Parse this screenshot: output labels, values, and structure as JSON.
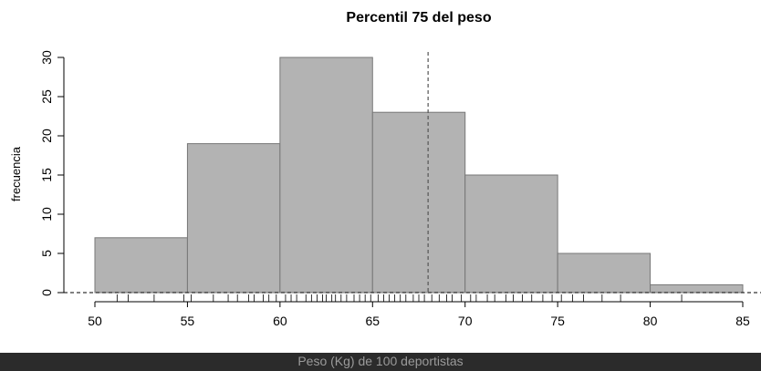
{
  "chart_data": {
    "type": "bar",
    "title": "Percentil 75 del peso",
    "xlabel": "Peso (Kg) de 100 deportistas",
    "ylabel": "frecuencia",
    "bins": [
      {
        "from": 50,
        "to": 55,
        "count": 7
      },
      {
        "from": 55,
        "to": 60,
        "count": 19
      },
      {
        "from": 60,
        "to": 65,
        "count": 30
      },
      {
        "from": 65,
        "to": 70,
        "count": 23
      },
      {
        "from": 70,
        "to": 75,
        "count": 15
      },
      {
        "from": 75,
        "to": 80,
        "count": 5
      },
      {
        "from": 80,
        "to": 85,
        "count": 1
      }
    ],
    "xlim": [
      50,
      85
    ],
    "ylim": [
      0,
      30
    ],
    "xticks": [
      "50",
      "55",
      "60",
      "65",
      "70",
      "75",
      "80",
      "85"
    ],
    "yticks": [
      "0",
      "5",
      "10",
      "15",
      "20",
      "25",
      "30"
    ],
    "percentile_75": 68,
    "rug": [
      51.2,
      51.8,
      53.2,
      54.8,
      55.2,
      56.4,
      57.2,
      57.7,
      58.3,
      58.6,
      59.1,
      59.4,
      59.8,
      60.3,
      60.6,
      60.9,
      61.4,
      61.7,
      62.0,
      62.3,
      62.5,
      62.8,
      63.0,
      63.3,
      63.6,
      64.0,
      64.3,
      64.6,
      64.9,
      65.3,
      65.6,
      65.9,
      66.2,
      66.5,
      66.8,
      67.2,
      67.5,
      67.8,
      68.2,
      68.6,
      69.0,
      69.3,
      69.8,
      70.3,
      70.6,
      71.2,
      71.6,
      72.2,
      72.6,
      73.1,
      73.6,
      74.2,
      74.7,
      75.2,
      75.8,
      76.4,
      77.4,
      78.4,
      81.7
    ],
    "bar_color": "#b3b3b3",
    "bar_stroke": "#777777",
    "percentile_line_color": "#555555"
  }
}
